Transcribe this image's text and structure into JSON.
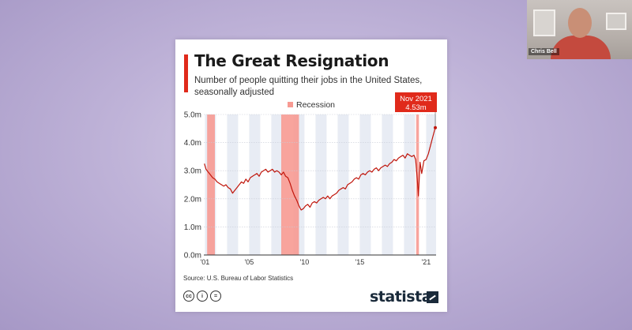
{
  "slide": {
    "title": "The Great Resignation",
    "subtitle": "Number of people quitting their jobs in the United States, seasonally adjusted",
    "source": "Source: U.S. Bureau of Labor Statistics",
    "brand": "statista",
    "license_icons": [
      "cc-icon",
      "attribution-icon",
      "no-derivatives-icon"
    ]
  },
  "colors": {
    "accent": "#e02a1b",
    "line": "#c0160c",
    "recession": "#f79a92",
    "band": "#e8ecf4"
  },
  "chart_data": {
    "type": "line",
    "legend": {
      "label": "Recession",
      "placement": "top"
    },
    "annotation": {
      "label": "Nov 2021",
      "value_label": "4.53m",
      "x": 2021.83,
      "y": 4.53
    },
    "yticks": [
      "0.0m",
      "1.0m",
      "2.0m",
      "3.0m",
      "4.0m",
      "5.0m"
    ],
    "ylim": [
      0,
      5
    ],
    "xticks": [
      {
        "label": "'01",
        "x": 2001
      },
      {
        "label": "'05",
        "x": 2005
      },
      {
        "label": "'10",
        "x": 2010
      },
      {
        "label": "'15",
        "x": 2015
      },
      {
        "label": "'21",
        "x": 2021
      }
    ],
    "xlim": [
      2000.9,
      2021.9
    ],
    "recessions": [
      [
        2001.2,
        2001.9
      ],
      [
        2007.9,
        2009.5
      ],
      [
        2020.1,
        2020.35
      ]
    ],
    "series": [
      {
        "x": [
          2000.95,
          2001.1,
          2001.3,
          2001.5,
          2001.7,
          2001.9,
          2002.1,
          2002.3,
          2002.5,
          2002.7,
          2002.9,
          2003.1,
          2003.3,
          2003.5,
          2003.7,
          2003.9,
          2004.1,
          2004.3,
          2004.5,
          2004.7,
          2004.9,
          2005.1,
          2005.3,
          2005.5,
          2005.7,
          2005.9,
          2006.1,
          2006.3,
          2006.5,
          2006.7,
          2006.9,
          2007.1,
          2007.3,
          2007.5,
          2007.7,
          2007.9,
          2008.1,
          2008.3,
          2008.5,
          2008.7,
          2008.9,
          2009.1,
          2009.3,
          2009.5,
          2009.7,
          2009.9,
          2010.1,
          2010.3,
          2010.5,
          2010.7,
          2010.9,
          2011.1,
          2011.3,
          2011.5,
          2011.7,
          2011.9,
          2012.1,
          2012.3,
          2012.5,
          2012.7,
          2012.9,
          2013.1,
          2013.3,
          2013.5,
          2013.7,
          2013.9,
          2014.1,
          2014.3,
          2014.5,
          2014.7,
          2014.9,
          2015.1,
          2015.3,
          2015.5,
          2015.7,
          2015.9,
          2016.1,
          2016.3,
          2016.5,
          2016.7,
          2016.9,
          2017.1,
          2017.3,
          2017.5,
          2017.7,
          2017.9,
          2018.1,
          2018.3,
          2018.5,
          2018.7,
          2018.9,
          2019.1,
          2019.3,
          2019.5,
          2019.7,
          2019.9,
          2020.05,
          2020.2,
          2020.3,
          2020.45,
          2020.6,
          2020.8,
          2021.0,
          2021.2,
          2021.4,
          2021.6,
          2021.83
        ],
        "y": [
          3.25,
          3.05,
          2.95,
          2.85,
          2.75,
          2.7,
          2.6,
          2.55,
          2.5,
          2.45,
          2.5,
          2.4,
          2.35,
          2.2,
          2.3,
          2.4,
          2.5,
          2.6,
          2.55,
          2.7,
          2.6,
          2.75,
          2.8,
          2.85,
          2.9,
          2.8,
          2.95,
          3.0,
          3.05,
          2.95,
          3.0,
          3.05,
          2.95,
          3.0,
          2.95,
          2.85,
          2.95,
          2.8,
          2.75,
          2.55,
          2.3,
          2.1,
          1.95,
          1.75,
          1.6,
          1.65,
          1.75,
          1.8,
          1.7,
          1.85,
          1.9,
          1.85,
          1.95,
          2.0,
          2.05,
          2.0,
          2.1,
          2.0,
          2.1,
          2.15,
          2.2,
          2.3,
          2.35,
          2.4,
          2.35,
          2.5,
          2.55,
          2.6,
          2.7,
          2.75,
          2.7,
          2.85,
          2.9,
          2.85,
          2.95,
          3.0,
          2.95,
          3.05,
          3.1,
          3.0,
          3.1,
          3.15,
          3.2,
          3.15,
          3.25,
          3.3,
          3.4,
          3.35,
          3.45,
          3.5,
          3.55,
          3.45,
          3.6,
          3.55,
          3.5,
          3.55,
          3.4,
          2.7,
          2.1,
          3.3,
          2.9,
          3.35,
          3.4,
          3.6,
          3.9,
          4.2,
          4.53
        ]
      }
    ]
  },
  "webcam": {
    "name": "Chris Bell"
  }
}
